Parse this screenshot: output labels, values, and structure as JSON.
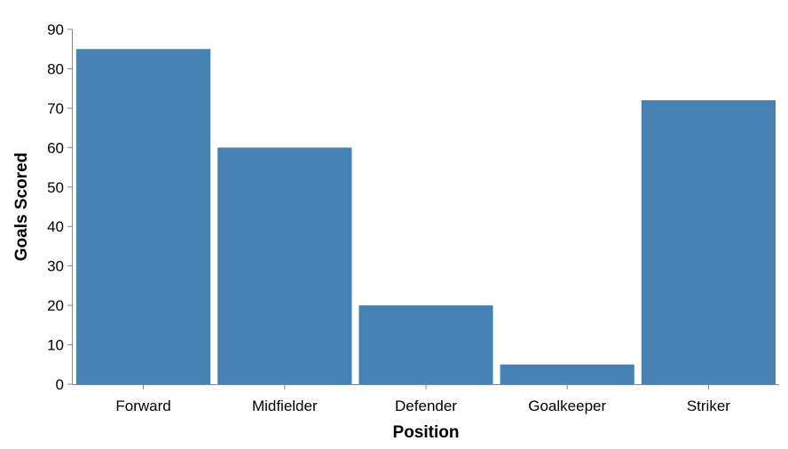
{
  "chart_data": {
    "type": "bar",
    "title": "",
    "xlabel": "Position",
    "ylabel": "Goals Scored",
    "categories": [
      "Forward",
      "Midfielder",
      "Defender",
      "Goalkeeper",
      "Striker"
    ],
    "values": [
      85,
      60,
      20,
      5,
      72
    ],
    "ylim": [
      0,
      90
    ],
    "yticks": [
      0,
      10,
      20,
      30,
      40,
      50,
      60,
      70,
      80,
      90
    ],
    "grid": false,
    "bar_color": "#4682b4"
  }
}
